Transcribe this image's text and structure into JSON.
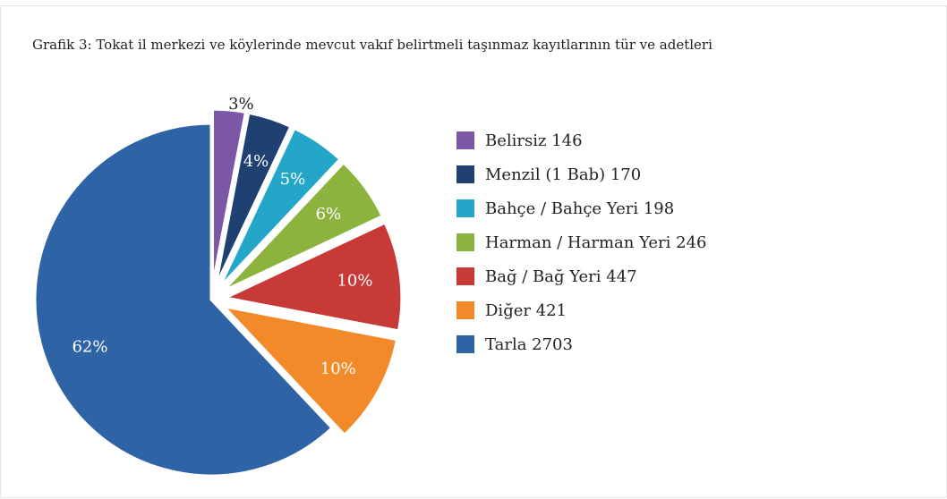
{
  "chart_data": {
    "type": "pie",
    "title": "Grafik 3: Tokat il merkezi ve köylerinde mevcut vakıf belirtmeli taşınmaz kayıtlarının tür ve adetleri",
    "categories": [
      "Belirsiz 146",
      "Menzil (1 Bab) 170",
      "Bahçe / Bahçe Yeri 198",
      "Harman / Harman Yeri 246",
      "Bağ / Bağ Yeri 447",
      "Diğer 421",
      "Tarla 2703"
    ],
    "values": [
      3,
      4,
      5,
      6,
      10,
      10,
      62
    ],
    "value_labels": [
      "3%",
      "4%",
      "5%",
      "6%",
      "10%",
      "10%",
      "62%"
    ],
    "colors": [
      "#7b57a6",
      "#1f4172",
      "#23a6c8",
      "#8db33f",
      "#c83a37",
      "#f28a2a",
      "#2e63a6"
    ],
    "legend": "right"
  }
}
